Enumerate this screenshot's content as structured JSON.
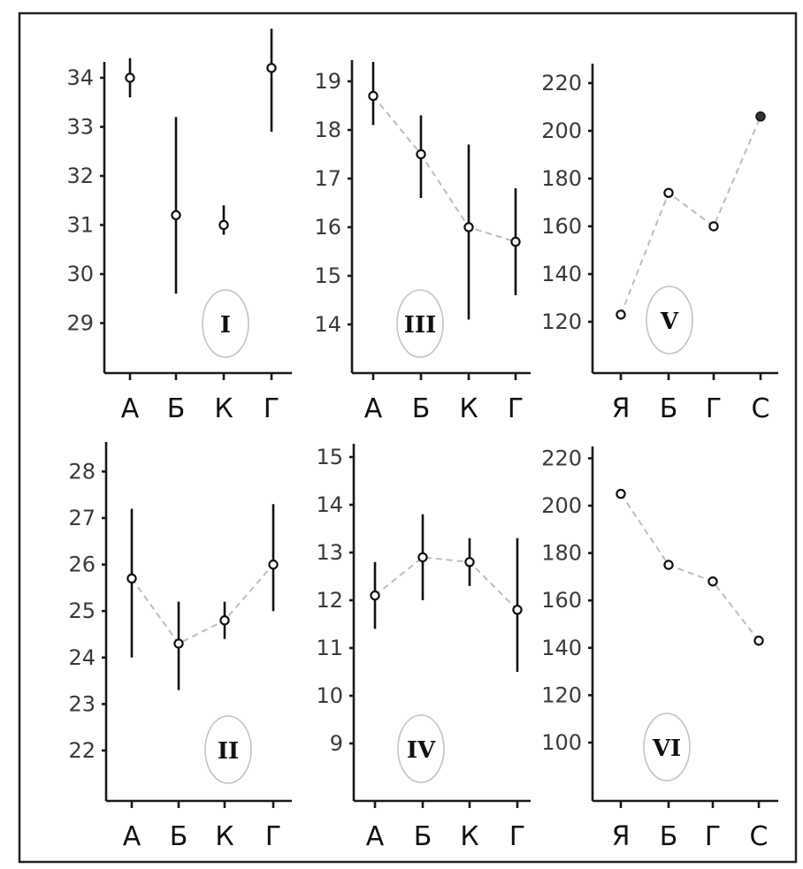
{
  "chart_data": [
    {
      "type": "scatter",
      "panel_label": "I",
      "categories": [
        "А",
        "Б",
        "К",
        "Г"
      ],
      "yticks": [
        "29",
        "30",
        "31",
        "32",
        "33",
        "34"
      ],
      "ylim": [
        28.2,
        34.8
      ],
      "points": [
        {
          "y": 34.0,
          "low": 33.6,
          "high": 34.4,
          "marker": "open"
        },
        {
          "y": 31.2,
          "low": 29.6,
          "high": 33.2,
          "marker": "open"
        },
        {
          "y": 31.0,
          "low": 30.8,
          "high": 31.4,
          "marker": "open"
        },
        {
          "y": 34.2,
          "low": 32.9,
          "high": 35.0,
          "marker": "open"
        }
      ],
      "connect": false
    },
    {
      "type": "line",
      "panel_label": "III",
      "categories": [
        "А",
        "Б",
        "К",
        "Г"
      ],
      "yticks": [
        "14",
        "15",
        "16",
        "17",
        "18",
        "19"
      ],
      "ylim": [
        13.2,
        19.6
      ],
      "points": [
        {
          "y": 18.7,
          "low": 18.1,
          "high": 19.4,
          "marker": "open"
        },
        {
          "y": 17.5,
          "low": 16.6,
          "high": 18.3,
          "marker": "open"
        },
        {
          "y": 16.0,
          "low": 14.1,
          "high": 17.7,
          "marker": "open"
        },
        {
          "y": 15.7,
          "low": 14.6,
          "high": 16.8,
          "marker": "open"
        }
      ],
      "connect": true
    },
    {
      "type": "line",
      "panel_label": "V",
      "categories": [
        "Я",
        "Б",
        "Г",
        "С"
      ],
      "yticks": [
        "120",
        "140",
        "160",
        "180",
        "200",
        "220"
      ],
      "ylim": [
        110,
        230
      ],
      "points": [
        {
          "y": 123,
          "marker": "open"
        },
        {
          "y": 174,
          "marker": "open"
        },
        {
          "y": 160,
          "marker": "open"
        },
        {
          "y": 206,
          "marker": "filled"
        }
      ],
      "connect": true
    },
    {
      "type": "line",
      "panel_label": "II",
      "categories": [
        "А",
        "Б",
        "К",
        "Г"
      ],
      "yticks": [
        "22",
        "23",
        "24",
        "25",
        "26",
        "27",
        "28"
      ],
      "ylim": [
        21.0,
        28.4
      ],
      "points": [
        {
          "y": 25.7,
          "low": 24.0,
          "high": 27.2,
          "marker": "open"
        },
        {
          "y": 24.3,
          "low": 23.3,
          "high": 25.2,
          "marker": "open"
        },
        {
          "y": 24.8,
          "low": 24.4,
          "high": 25.2,
          "marker": "open"
        },
        {
          "y": 26.0,
          "low": 25.0,
          "high": 27.3,
          "marker": "open"
        }
      ],
      "connect": true
    },
    {
      "type": "line",
      "panel_label": "IV",
      "categories": [
        "А",
        "Б",
        "К",
        "Г"
      ],
      "yticks": [
        "9",
        "10",
        "11",
        "12",
        "13",
        "14",
        "15"
      ],
      "ylim": [
        8.0,
        15.4
      ],
      "points": [
        {
          "y": 12.1,
          "low": 11.4,
          "high": 12.8,
          "marker": "open"
        },
        {
          "y": 12.9,
          "low": 12.0,
          "high": 13.8,
          "marker": "open"
        },
        {
          "y": 12.8,
          "low": 12.3,
          "high": 13.3,
          "marker": "open"
        },
        {
          "y": 11.8,
          "low": 10.5,
          "high": 13.3,
          "marker": "open"
        }
      ],
      "connect": true
    },
    {
      "type": "line",
      "panel_label": "VI",
      "categories": [
        "Я",
        "Б",
        "Г",
        "С"
      ],
      "yticks": [
        "100",
        "120",
        "140",
        "160",
        "180",
        "200",
        "220"
      ],
      "ylim": [
        85,
        230
      ],
      "points": [
        {
          "y": 205,
          "marker": "open"
        },
        {
          "y": 175,
          "marker": "open"
        },
        {
          "y": 168,
          "marker": "open"
        },
        {
          "y": 143,
          "marker": "open"
        }
      ],
      "connect": true
    }
  ]
}
